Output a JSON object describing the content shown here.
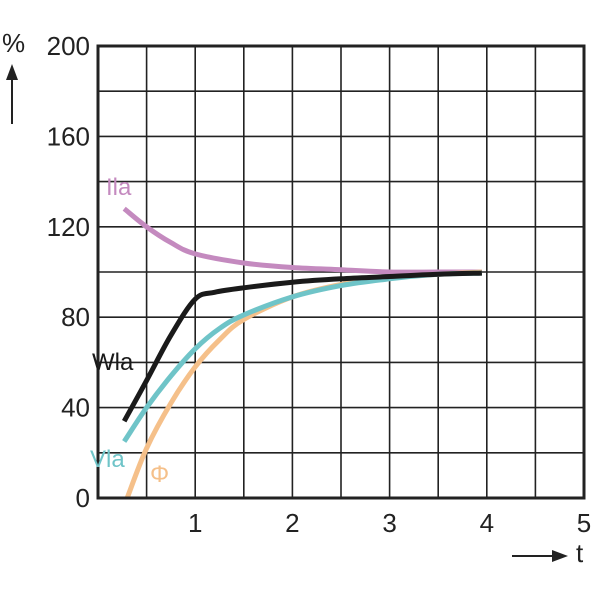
{
  "chart_data": {
    "type": "line",
    "title": "",
    "xlabel": "t",
    "ylabel": "%",
    "xlim": [
      0,
      5
    ],
    "ylim": [
      0,
      200
    ],
    "x_ticks": [
      "1",
      "2",
      "3",
      "4",
      "5"
    ],
    "y_ticks": [
      "0",
      "40",
      "80",
      "120",
      "160",
      "200"
    ],
    "grid": true,
    "grid_x_step": 0.5,
    "grid_y_step": 20,
    "frame_color": "#222222",
    "series": [
      {
        "name": "Ila",
        "color": "#c48abf",
        "points": [
          [
            0.27,
            128
          ],
          [
            0.5,
            120
          ],
          [
            0.75,
            113
          ],
          [
            1.0,
            108
          ],
          [
            1.5,
            104
          ],
          [
            2.0,
            102
          ],
          [
            2.5,
            101
          ],
          [
            3.0,
            100
          ],
          [
            3.5,
            100
          ],
          [
            3.95,
            100
          ]
        ]
      },
      {
        "name": "Wla",
        "color": "#1a1a1a",
        "points": [
          [
            0.27,
            34
          ],
          [
            0.5,
            52
          ],
          [
            0.75,
            72
          ],
          [
            1.0,
            88
          ],
          [
            1.2,
            91
          ],
          [
            1.5,
            93
          ],
          [
            2.0,
            95.5
          ],
          [
            2.5,
            97
          ],
          [
            3.0,
            98
          ],
          [
            3.5,
            99
          ],
          [
            3.95,
            99.5
          ]
        ]
      },
      {
        "name": "Vla",
        "color": "#6fc4c8",
        "points": [
          [
            0.27,
            25
          ],
          [
            0.5,
            40
          ],
          [
            0.75,
            54
          ],
          [
            1.0,
            66
          ],
          [
            1.25,
            75
          ],
          [
            1.5,
            81
          ],
          [
            2.0,
            89
          ],
          [
            2.5,
            94
          ],
          [
            3.0,
            97
          ],
          [
            3.5,
            99
          ],
          [
            3.95,
            99.5
          ]
        ]
      },
      {
        "name": "Φ",
        "color": "#f5c08a",
        "points": [
          [
            0.3,
            0
          ],
          [
            0.5,
            22
          ],
          [
            0.75,
            42
          ],
          [
            1.0,
            58
          ],
          [
            1.25,
            70
          ],
          [
            1.5,
            79
          ],
          [
            2.0,
            89
          ],
          [
            2.5,
            94.5
          ],
          [
            3.0,
            97.5
          ],
          [
            3.5,
            99
          ],
          [
            3.95,
            100
          ]
        ]
      }
    ]
  }
}
